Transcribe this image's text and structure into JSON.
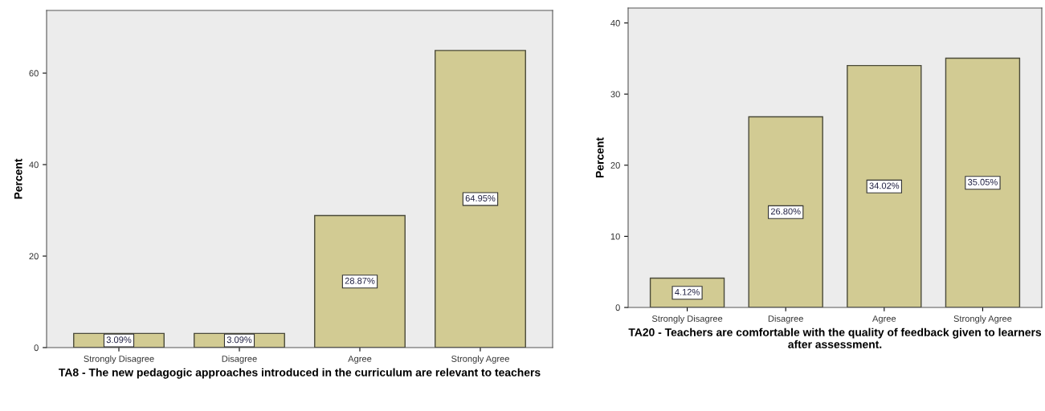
{
  "chart_data": [
    {
      "type": "bar",
      "xlabel": "TA8 - The new pedagogic approaches introduced in the curriculum are relevant to teachers",
      "ylabel": "Percent",
      "categories": [
        "Strongly Disagree",
        "Disagree",
        "Agree",
        "Strongly Agree"
      ],
      "series": [
        {
          "color": "#d2cb93",
          "values": [
            3.09,
            3.09,
            28.87,
            64.95
          ],
          "value_labels": [
            "3.09%",
            "3.09%",
            "28.87%",
            "64.95%"
          ]
        }
      ],
      "ylim": [
        0,
        73.7
      ],
      "yticks": [
        0,
        20,
        40,
        60
      ],
      "grid": false,
      "legend": false
    },
    {
      "type": "bar",
      "xlabel": "TA20 - Teachers are comfortable with the quality of feedback given to learners after assessment.",
      "ylabel": "Percent",
      "categories": [
        "Strongly Disagree",
        "Disagree",
        "Agree",
        "Strongly Agree"
      ],
      "series": [
        {
          "color": "#d2cb93",
          "values": [
            4.12,
            26.8,
            34.02,
            35.05
          ],
          "value_labels": [
            "4.12%",
            "26.80%",
            "34.02%",
            "35.05%"
          ]
        }
      ],
      "ylim": [
        0,
        42.1
      ],
      "yticks": [
        0,
        10,
        20,
        30,
        40
      ],
      "grid": false,
      "legend": false
    }
  ]
}
